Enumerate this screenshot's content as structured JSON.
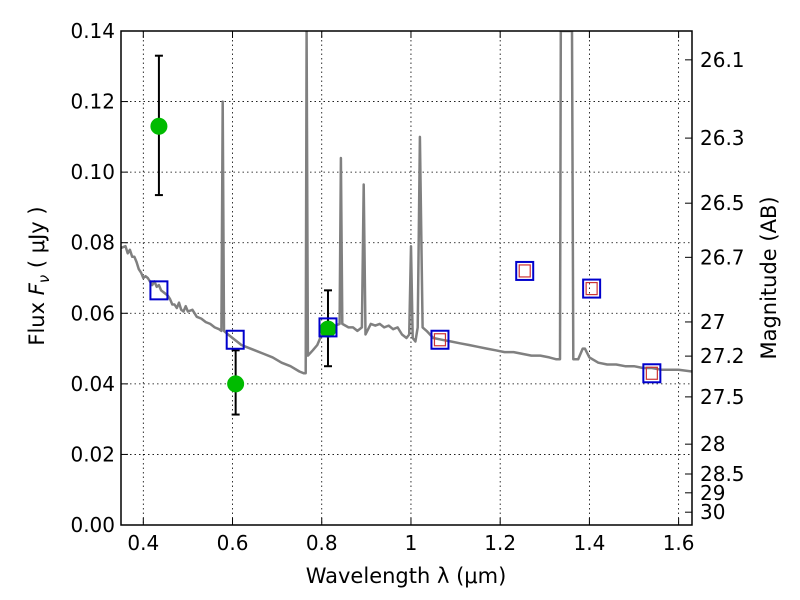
{
  "chart_data": {
    "type": "scatter",
    "xlabel": "Wavelength  λ (μm)",
    "ylabel_prefix": "Flux  ",
    "ylabel_symbol": "F",
    "ylabel_subscript": "ν",
    "ylabel_suffix": "  ( μJy )",
    "y2label": "Magnitude (AB)",
    "xlim": [
      0.35,
      1.63
    ],
    "ylim": [
      0.0,
      0.14
    ],
    "grid": true,
    "x_ticks": [
      {
        "value": 0.4,
        "label": "0.4"
      },
      {
        "value": 0.6,
        "label": "0.6"
      },
      {
        "value": 0.8,
        "label": "0.8"
      },
      {
        "value": 1.0,
        "label": "1"
      },
      {
        "value": 1.2,
        "label": "1.2"
      },
      {
        "value": 1.4,
        "label": "1.4"
      },
      {
        "value": 1.6,
        "label": "1.6"
      }
    ],
    "y_ticks": [
      {
        "value": 0.0,
        "label": "0.00"
      },
      {
        "value": 0.02,
        "label": "0.02"
      },
      {
        "value": 0.04,
        "label": "0.04"
      },
      {
        "value": 0.06,
        "label": "0.06"
      },
      {
        "value": 0.08,
        "label": "0.08"
      },
      {
        "value": 0.1,
        "label": "0.10"
      },
      {
        "value": 0.12,
        "label": "0.12"
      },
      {
        "value": 0.14,
        "label": "0.14"
      }
    ],
    "y2_ticks": [
      {
        "value": 26.1,
        "label": "26.1"
      },
      {
        "value": 26.3,
        "label": "26.3"
      },
      {
        "value": 26.5,
        "label": "26.5"
      },
      {
        "value": 26.7,
        "label": "26.7"
      },
      {
        "value": 27.0,
        "label": "27"
      },
      {
        "value": 27.2,
        "label": "27.2"
      },
      {
        "value": 27.5,
        "label": "27.5"
      },
      {
        "value": 28.0,
        "label": "28"
      },
      {
        "value": 28.5,
        "label": "28.5"
      },
      {
        "value": 29.0,
        "label": "29"
      },
      {
        "value": 30.0,
        "label": "30"
      }
    ],
    "colors": {
      "model": "#808080",
      "observed": "#00bb00",
      "error_bar": "#000000",
      "model_band": "#0000cc",
      "model_band_inner": "#cc3333"
    },
    "model_spectrum": [
      [
        0.35,
        0.0785
      ],
      [
        0.36,
        0.079
      ],
      [
        0.365,
        0.077
      ],
      [
        0.37,
        0.078
      ],
      [
        0.375,
        0.076
      ],
      [
        0.38,
        0.076
      ],
      [
        0.385,
        0.0745
      ],
      [
        0.39,
        0.0725
      ],
      [
        0.395,
        0.0715
      ],
      [
        0.4,
        0.07
      ],
      [
        0.405,
        0.0705
      ],
      [
        0.41,
        0.07
      ],
      [
        0.415,
        0.069
      ],
      [
        0.42,
        0.068
      ],
      [
        0.425,
        0.069
      ],
      [
        0.43,
        0.0675
      ],
      [
        0.435,
        0.068
      ],
      [
        0.44,
        0.0665
      ],
      [
        0.445,
        0.066
      ],
      [
        0.45,
        0.0655
      ],
      [
        0.455,
        0.065
      ],
      [
        0.46,
        0.064
      ],
      [
        0.465,
        0.0625
      ],
      [
        0.47,
        0.0625
      ],
      [
        0.475,
        0.0615
      ],
      [
        0.48,
        0.063
      ],
      [
        0.485,
        0.061
      ],
      [
        0.49,
        0.0605
      ],
      [
        0.495,
        0.062
      ],
      [
        0.5,
        0.0605
      ],
      [
        0.51,
        0.061
      ],
      [
        0.52,
        0.059
      ],
      [
        0.53,
        0.0585
      ],
      [
        0.54,
        0.0575
      ],
      [
        0.55,
        0.057
      ],
      [
        0.56,
        0.056
      ],
      [
        0.57,
        0.0555
      ],
      [
        0.575,
        0.055
      ],
      [
        0.578,
        0.12
      ],
      [
        0.581,
        0.055
      ],
      [
        0.59,
        0.054
      ],
      [
        0.6,
        0.053
      ],
      [
        0.61,
        0.052
      ],
      [
        0.62,
        0.051
      ],
      [
        0.63,
        0.0505
      ],
      [
        0.65,
        0.0495
      ],
      [
        0.67,
        0.0485
      ],
      [
        0.69,
        0.0475
      ],
      [
        0.71,
        0.046
      ],
      [
        0.73,
        0.045
      ],
      [
        0.75,
        0.0435
      ],
      [
        0.76,
        0.043
      ],
      [
        0.764,
        0.043
      ],
      [
        0.766,
        0.14
      ],
      [
        0.769,
        0.048
      ],
      [
        0.78,
        0.0495
      ],
      [
        0.79,
        0.051
      ],
      [
        0.8,
        0.054
      ],
      [
        0.81,
        0.0555
      ],
      [
        0.82,
        0.056
      ],
      [
        0.83,
        0.0565
      ],
      [
        0.84,
        0.057
      ],
      [
        0.843,
        0.104
      ],
      [
        0.846,
        0.057
      ],
      [
        0.86,
        0.056
      ],
      [
        0.87,
        0.056
      ],
      [
        0.88,
        0.055
      ],
      [
        0.89,
        0.056
      ],
      [
        0.894,
        0.0965
      ],
      [
        0.898,
        0.054
      ],
      [
        0.91,
        0.057
      ],
      [
        0.92,
        0.0565
      ],
      [
        0.93,
        0.057
      ],
      [
        0.94,
        0.056
      ],
      [
        0.95,
        0.0565
      ],
      [
        0.96,
        0.0555
      ],
      [
        0.97,
        0.056
      ],
      [
        0.98,
        0.054
      ],
      [
        0.99,
        0.053
      ],
      [
        0.996,
        0.054
      ],
      [
        1.0,
        0.079
      ],
      [
        1.004,
        0.053
      ],
      [
        1.01,
        0.052
      ],
      [
        1.015,
        0.056
      ],
      [
        1.02,
        0.11
      ],
      [
        1.026,
        0.056
      ],
      [
        1.035,
        0.055
      ],
      [
        1.05,
        0.053
      ],
      [
        1.07,
        0.0525
      ],
      [
        1.09,
        0.052
      ],
      [
        1.11,
        0.0515
      ],
      [
        1.13,
        0.051
      ],
      [
        1.15,
        0.0505
      ],
      [
        1.17,
        0.05
      ],
      [
        1.19,
        0.0495
      ],
      [
        1.21,
        0.049
      ],
      [
        1.23,
        0.049
      ],
      [
        1.25,
        0.0485
      ],
      [
        1.27,
        0.048
      ],
      [
        1.29,
        0.048
      ],
      [
        1.31,
        0.0475
      ],
      [
        1.325,
        0.047
      ],
      [
        1.334,
        0.047
      ],
      [
        1.336,
        0.14
      ],
      [
        1.361,
        0.14
      ],
      [
        1.364,
        0.047
      ],
      [
        1.375,
        0.047
      ],
      [
        1.385,
        0.05
      ],
      [
        1.39,
        0.05
      ],
      [
        1.4,
        0.0475
      ],
      [
        1.42,
        0.046
      ],
      [
        1.44,
        0.0455
      ],
      [
        1.46,
        0.0455
      ],
      [
        1.48,
        0.045
      ],
      [
        1.5,
        0.045
      ],
      [
        1.52,
        0.0445
      ],
      [
        1.54,
        0.0445
      ],
      [
        1.56,
        0.044
      ],
      [
        1.58,
        0.044
      ],
      [
        1.6,
        0.044
      ],
      [
        1.63,
        0.0435
      ]
    ],
    "observed": [
      {
        "x": 0.435,
        "y": 0.113,
        "err_low": 0.0195,
        "err_high": 0.02
      },
      {
        "x": 0.607,
        "y": 0.04,
        "err_low": 0.0087,
        "err_high": 0.0095
      },
      {
        "x": 0.814,
        "y": 0.0555,
        "err_low": 0.0105,
        "err_high": 0.011
      }
    ],
    "model_band_fluxes": [
      {
        "x": 0.435,
        "y": 0.0665,
        "inner": false
      },
      {
        "x": 0.606,
        "y": 0.0525,
        "inner": false
      },
      {
        "x": 0.814,
        "y": 0.056,
        "inner": false
      },
      {
        "x": 1.065,
        "y": 0.0525,
        "inner": true
      },
      {
        "x": 1.255,
        "y": 0.072,
        "inner": true
      },
      {
        "x": 1.405,
        "y": 0.067,
        "inner": true
      },
      {
        "x": 1.54,
        "y": 0.043,
        "inner": true
      }
    ]
  }
}
